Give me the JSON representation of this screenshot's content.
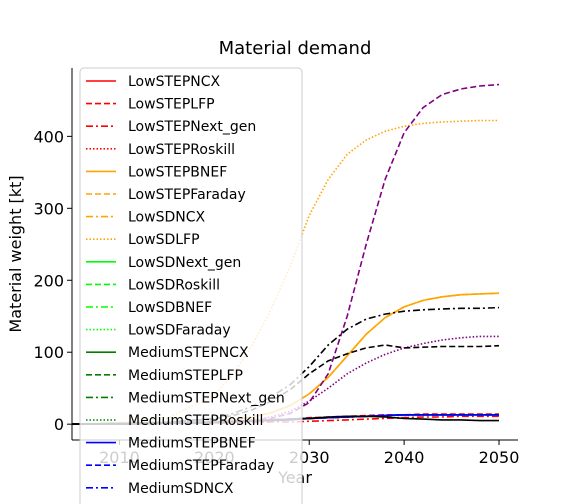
{
  "chart_data": {
    "type": "line",
    "title": "Material demand",
    "xlabel": "Year",
    "ylabel": "Material weight [kt]",
    "xlim": [
      2005,
      2052
    ],
    "ylim": [
      -22,
      495
    ],
    "xticks": [
      2010,
      2020,
      2030,
      2040,
      2050
    ],
    "yticks": [
      0,
      100,
      200,
      300,
      400
    ],
    "x": [
      2005,
      2010,
      2015,
      2020,
      2022,
      2024,
      2026,
      2028,
      2030,
      2032,
      2034,
      2036,
      2038,
      2040,
      2042,
      2044,
      2046,
      2048,
      2050
    ],
    "grid": false,
    "legend_position": "upper-left",
    "series": [
      {
        "name": "LowSTEPNCX",
        "color": "#ff0000",
        "dash": "solid",
        "values": [
          0,
          1,
          2,
          3,
          4,
          5,
          6,
          7,
          8,
          9,
          10,
          11,
          12,
          13,
          13,
          13,
          13,
          13,
          13
        ]
      },
      {
        "name": "LowSTEPLFP",
        "color": "#ff0000",
        "dash": "dashed",
        "values": [
          0,
          1,
          2,
          3,
          4,
          5,
          6,
          7,
          9,
          10,
          11,
          12,
          13,
          13,
          14,
          14,
          14,
          14,
          14
        ]
      },
      {
        "name": "LowSTEPNext_gen",
        "color": "#ff0000",
        "dash": "dashdot",
        "values": [
          0,
          0,
          1,
          1,
          2,
          2,
          3,
          3,
          4,
          5,
          6,
          7,
          8,
          9,
          10,
          10,
          11,
          11,
          11
        ]
      },
      {
        "name": "LowSTEPRoskill",
        "color": "#ff0000",
        "dash": "dotted",
        "values": [
          0,
          1,
          2,
          3,
          4,
          5,
          6,
          7,
          8,
          9,
          10,
          11,
          12,
          12,
          13,
          13,
          13,
          13,
          13
        ]
      },
      {
        "name": "LowSTEPBNEF",
        "color": "#ffa500",
        "dash": "solid",
        "values": [
          0,
          1,
          2,
          4,
          6,
          10,
          16,
          26,
          42,
          65,
          95,
          125,
          148,
          163,
          172,
          177,
          180,
          181,
          182
        ]
      },
      {
        "name": "LowSTEPFaraday",
        "color": "#ffa500",
        "dash": "dashed",
        "values": [
          0,
          1,
          2,
          4,
          6,
          10,
          16,
          26,
          42,
          65,
          95,
          125,
          148,
          163,
          172,
          177,
          180,
          181,
          182
        ]
      },
      {
        "name": "LowSDNCX",
        "color": "#ffa500",
        "dash": "dashdot",
        "values": [
          0,
          1,
          2,
          3,
          4,
          5,
          6,
          7,
          8,
          9,
          10,
          11,
          12,
          13,
          13,
          13,
          13,
          13,
          13
        ]
      },
      {
        "name": "LowSDLFP",
        "color": "#ffa500",
        "dash": "dotted",
        "values": [
          0,
          2,
          8,
          40,
          70,
          110,
          160,
          220,
          290,
          340,
          375,
          395,
          407,
          414,
          418,
          420,
          421,
          422,
          422
        ]
      },
      {
        "name": "LowSDNext_gen",
        "color": "#00ff00",
        "dash": "solid",
        "values": [
          0,
          1,
          2,
          3,
          4,
          5,
          6,
          7,
          8,
          9,
          10,
          11,
          12,
          13,
          13,
          13,
          13,
          13,
          13
        ]
      },
      {
        "name": "LowSDRoskill",
        "color": "#00ff00",
        "dash": "dashed",
        "values": [
          0,
          1,
          2,
          3,
          4,
          5,
          6,
          7,
          8,
          9,
          10,
          11,
          12,
          13,
          13,
          13,
          13,
          13,
          13
        ]
      },
      {
        "name": "LowSDBNEF",
        "color": "#00ff00",
        "dash": "dashdot",
        "values": [
          0,
          1,
          2,
          3,
          4,
          5,
          6,
          7,
          8,
          9,
          10,
          11,
          12,
          13,
          13,
          13,
          13,
          13,
          13
        ]
      },
      {
        "name": "LowSDFaraday",
        "color": "#00ff00",
        "dash": "dotted",
        "values": [
          0,
          1,
          2,
          3,
          4,
          5,
          6,
          7,
          8,
          9,
          10,
          11,
          12,
          13,
          13,
          13,
          13,
          13,
          13
        ]
      },
      {
        "name": "MediumSTEPNCX",
        "color": "#008000",
        "dash": "solid",
        "values": [
          0,
          1,
          2,
          3,
          4,
          5,
          6,
          7,
          8,
          9,
          10,
          11,
          12,
          13,
          13,
          13,
          13,
          13,
          13
        ]
      },
      {
        "name": "MediumSTEPLFP",
        "color": "#008000",
        "dash": "dashed",
        "values": [
          0,
          1,
          2,
          3,
          4,
          5,
          6,
          7,
          8,
          9,
          10,
          11,
          12,
          13,
          13,
          13,
          13,
          13,
          13
        ]
      },
      {
        "name": "MediumSTEPNext_gen",
        "color": "#008000",
        "dash": "dashdot",
        "values": [
          0,
          1,
          2,
          3,
          4,
          5,
          6,
          7,
          8,
          9,
          10,
          11,
          12,
          13,
          13,
          13,
          13,
          13,
          13
        ]
      },
      {
        "name": "MediumSTEPRoskill",
        "color": "#008000",
        "dash": "dotted",
        "values": [
          0,
          1,
          2,
          3,
          4,
          5,
          6,
          7,
          8,
          9,
          10,
          11,
          12,
          13,
          13,
          13,
          13,
          13,
          13
        ]
      },
      {
        "name": "MediumSTEPBNEF",
        "color": "#0000ff",
        "dash": "solid",
        "values": [
          0,
          1,
          2,
          3,
          4,
          5,
          6,
          7,
          8,
          9,
          10,
          11,
          12,
          13,
          13,
          13,
          13,
          13,
          13
        ]
      },
      {
        "name": "MediumSTEPFaraday",
        "color": "#0000ff",
        "dash": "dashed",
        "values": [
          0,
          1,
          2,
          3,
          4,
          5,
          6,
          7,
          8,
          9,
          10,
          11,
          12,
          13,
          13,
          13,
          13,
          13,
          13
        ]
      },
      {
        "name": "MediumSDNCX",
        "color": "#0000ff",
        "dash": "dashdot",
        "values": [
          0,
          1,
          2,
          3,
          4,
          5,
          6,
          7,
          8,
          9,
          10,
          11,
          12,
          13,
          13,
          13,
          13,
          13,
          13
        ]
      },
      {
        "color": "#800080",
        "dash": "dashed",
        "values": [
          0,
          0,
          1,
          2,
          3,
          5,
          8,
          15,
          30,
          70,
          150,
          250,
          340,
          405,
          440,
          458,
          466,
          470,
          472
        ]
      },
      {
        "color": "#800080",
        "dash": "dotted",
        "values": [
          0,
          0,
          1,
          2,
          4,
          6,
          10,
          18,
          32,
          50,
          70,
          85,
          97,
          106,
          112,
          117,
          120,
          122,
          122
        ]
      },
      {
        "color": "#000000",
        "dash": "dashdot",
        "values": [
          0,
          1,
          3,
          8,
          15,
          25,
          38,
          55,
          80,
          110,
          132,
          146,
          153,
          157,
          159,
          160,
          161,
          161,
          162
        ]
      },
      {
        "color": "#000000",
        "dash": "dashed",
        "values": [
          0,
          1,
          3,
          7,
          12,
          20,
          32,
          48,
          70,
          88,
          98,
          106,
          110,
          106,
          107,
          108,
          108,
          108,
          109
        ]
      },
      {
        "color": "#000000",
        "dash": "solid",
        "values": [
          0,
          0,
          1,
          2,
          3,
          4,
          5,
          6,
          8,
          10,
          11,
          11,
          10,
          8,
          7,
          6,
          6,
          5,
          5
        ]
      }
    ]
  }
}
